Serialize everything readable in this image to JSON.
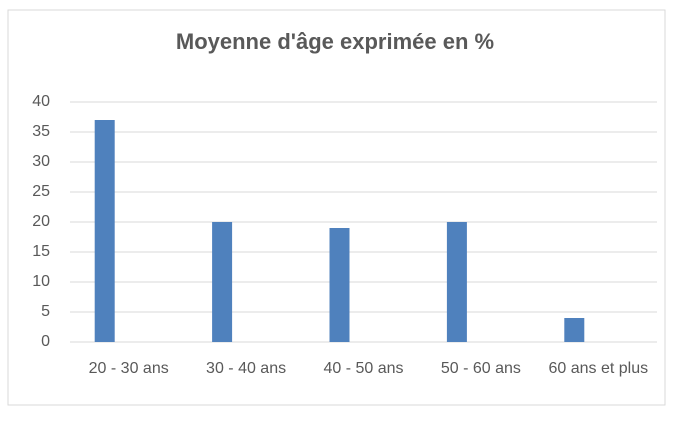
{
  "chart_data": {
    "type": "bar",
    "title": "Moyenne d'âge exprimée en %",
    "categories": [
      "20 - 30 ans",
      "30 - 40 ans",
      "40 - 50 ans",
      "50 - 60 ans",
      "60 ans et plus"
    ],
    "values": [
      37,
      20,
      19,
      20,
      4
    ],
    "color": "#4f81bd",
    "ylim": [
      0,
      40
    ],
    "yticks": [
      0,
      5,
      10,
      15,
      20,
      25,
      30,
      35,
      40
    ],
    "grid": true
  }
}
